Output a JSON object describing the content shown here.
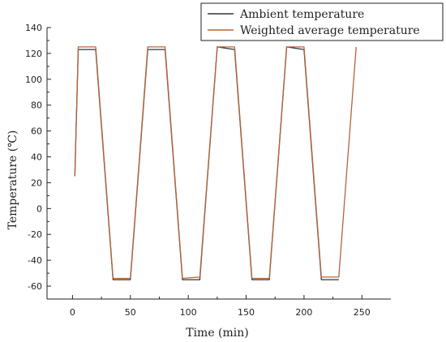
{
  "chart_data": {
    "type": "line",
    "title": "",
    "xlabel": "Time (min)",
    "ylabel": "Temperature (℃)",
    "xlim": [
      -22,
      275
    ],
    "ylim": [
      -70,
      140
    ],
    "xticks": [
      0,
      50,
      100,
      150,
      200,
      250
    ],
    "yticks": [
      -60,
      -40,
      -20,
      0,
      20,
      40,
      60,
      80,
      100,
      120,
      140
    ],
    "legend_position": "top-right",
    "series": [
      {
        "name": "Ambient temperature",
        "color": "#333333",
        "x": [
          2,
          5,
          20,
          35,
          50,
          65,
          80,
          95,
          110,
          125,
          140,
          155,
          170,
          185,
          200,
          215,
          230
        ],
        "y": [
          25,
          123,
          123,
          -55,
          -55,
          123,
          123,
          -55,
          -55,
          125,
          123,
          -55,
          -55,
          125,
          123,
          -55,
          -55
        ]
      },
      {
        "name": "Weighted average temperature",
        "color": "#b5643a",
        "x": [
          2,
          5,
          20,
          35,
          50,
          65,
          80,
          95,
          110,
          125,
          140,
          155,
          170,
          185,
          200,
          215,
          230,
          245
        ],
        "y": [
          25,
          125,
          125,
          -54,
          -54,
          125,
          125,
          -54,
          -53,
          125,
          125,
          -54,
          -54,
          125,
          125,
          -53,
          -53,
          125
        ]
      }
    ]
  }
}
